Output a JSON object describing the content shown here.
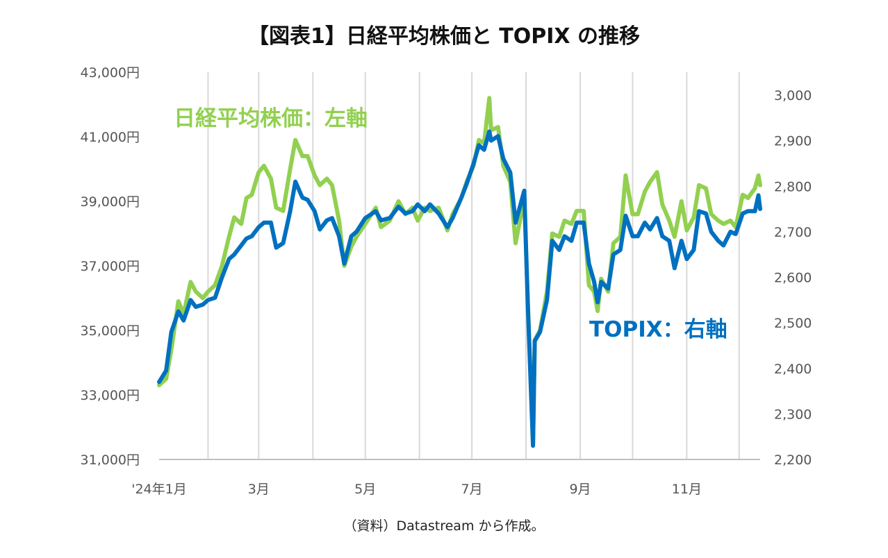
{
  "chart_data": {
    "type": "line",
    "title": "【図表1】日経平均株価と TOPIX の推移",
    "source_note": "（資料）Datastream から作成。",
    "x_tick_labels": [
      "'24年1月",
      "3月",
      "5月",
      "7月",
      "9月",
      "11月"
    ],
    "y_left": {
      "min": 31000,
      "max": 43000,
      "ticks": [
        31000,
        33000,
        35000,
        37000,
        39000,
        41000,
        43000
      ],
      "tick_labels": [
        "31,000円",
        "33,000円",
        "35,000円",
        "37,000円",
        "39,000円",
        "41,000円",
        "43,000円"
      ]
    },
    "y_right": {
      "min": 2200,
      "max": 3000,
      "ticks": [
        2200,
        2300,
        2400,
        2500,
        2600,
        2700,
        2800,
        2900,
        3000
      ],
      "tick_labels": [
        "2,200",
        "2,300",
        "2,400",
        "2,500",
        "2,600",
        "2,700",
        "2,800",
        "2,900",
        "3,000"
      ]
    },
    "grid": "vertical",
    "series": [
      {
        "name": "日経平均株価：左軸",
        "axis": "left",
        "color": "#92d050",
        "points": [
          [
            "2024-01-04",
            33300
          ],
          [
            "2024-01-08",
            33500
          ],
          [
            "2024-01-11",
            34400
          ],
          [
            "2024-01-15",
            35900
          ],
          [
            "2024-01-18",
            35500
          ],
          [
            "2024-01-22",
            36500
          ],
          [
            "2024-01-25",
            36200
          ],
          [
            "2024-01-29",
            36000
          ],
          [
            "2024-02-01",
            36200
          ],
          [
            "2024-02-05",
            36400
          ],
          [
            "2024-02-09",
            37000
          ],
          [
            "2024-02-13",
            37900
          ],
          [
            "2024-02-16",
            38500
          ],
          [
            "2024-02-20",
            38300
          ],
          [
            "2024-02-23",
            39100
          ],
          [
            "2024-02-26",
            39200
          ],
          [
            "2024-03-01",
            39900
          ],
          [
            "2024-03-04",
            40100
          ],
          [
            "2024-03-08",
            39700
          ],
          [
            "2024-03-11",
            38800
          ],
          [
            "2024-03-15",
            38700
          ],
          [
            "2024-03-19",
            40000
          ],
          [
            "2024-03-22",
            40900
          ],
          [
            "2024-03-26",
            40400
          ],
          [
            "2024-03-29",
            40400
          ],
          [
            "2024-04-02",
            39800
          ],
          [
            "2024-04-05",
            39500
          ],
          [
            "2024-04-09",
            39700
          ],
          [
            "2024-04-12",
            39500
          ],
          [
            "2024-04-16",
            38400
          ],
          [
            "2024-04-19",
            37000
          ],
          [
            "2024-04-23",
            37600
          ],
          [
            "2024-04-26",
            37900
          ],
          [
            "2024-05-01",
            38300
          ],
          [
            "2024-05-07",
            38800
          ],
          [
            "2024-05-10",
            38200
          ],
          [
            "2024-05-15",
            38400
          ],
          [
            "2024-05-20",
            39000
          ],
          [
            "2024-05-24",
            38600
          ],
          [
            "2024-05-28",
            38800
          ],
          [
            "2024-05-31",
            38400
          ],
          [
            "2024-06-04",
            38800
          ],
          [
            "2024-06-07",
            38700
          ],
          [
            "2024-06-12",
            38800
          ],
          [
            "2024-06-17",
            38100
          ],
          [
            "2024-06-20",
            38600
          ],
          [
            "2024-06-25",
            39100
          ],
          [
            "2024-06-28",
            39600
          ],
          [
            "2024-07-02",
            40100
          ],
          [
            "2024-07-05",
            40900
          ],
          [
            "2024-07-08",
            40800
          ],
          [
            "2024-07-11",
            42200
          ],
          [
            "2024-07-12",
            41200
          ],
          [
            "2024-07-16",
            41300
          ],
          [
            "2024-07-19",
            40100
          ],
          [
            "2024-07-23",
            39600
          ],
          [
            "2024-07-26",
            37700
          ],
          [
            "2024-07-31",
            39100
          ],
          [
            "2024-08-02",
            35900
          ],
          [
            "2024-08-05",
            31500
          ],
          [
            "2024-08-06",
            34700
          ],
          [
            "2024-08-09",
            35000
          ],
          [
            "2024-08-13",
            36200
          ],
          [
            "2024-08-16",
            38000
          ],
          [
            "2024-08-20",
            37900
          ],
          [
            "2024-08-23",
            38400
          ],
          [
            "2024-08-27",
            38300
          ],
          [
            "2024-08-30",
            38700
          ],
          [
            "2024-09-03",
            38700
          ],
          [
            "2024-09-06",
            36400
          ],
          [
            "2024-09-09",
            36200
          ],
          [
            "2024-09-11",
            35600
          ],
          [
            "2024-09-13",
            36600
          ],
          [
            "2024-09-17",
            36200
          ],
          [
            "2024-09-20",
            37700
          ],
          [
            "2024-09-24",
            37900
          ],
          [
            "2024-09-27",
            39800
          ],
          [
            "2024-10-01",
            38600
          ],
          [
            "2024-10-04",
            38600
          ],
          [
            "2024-10-08",
            39300
          ],
          [
            "2024-10-11",
            39600
          ],
          [
            "2024-10-15",
            39900
          ],
          [
            "2024-10-18",
            38900
          ],
          [
            "2024-10-22",
            38400
          ],
          [
            "2024-10-25",
            37900
          ],
          [
            "2024-10-29",
            39000
          ],
          [
            "2024-11-01",
            38100
          ],
          [
            "2024-11-05",
            38500
          ],
          [
            "2024-11-08",
            39500
          ],
          [
            "2024-11-12",
            39400
          ],
          [
            "2024-11-15",
            38600
          ],
          [
            "2024-11-19",
            38400
          ],
          [
            "2024-11-22",
            38300
          ],
          [
            "2024-11-26",
            38400
          ],
          [
            "2024-11-29",
            38200
          ],
          [
            "2024-12-03",
            39200
          ],
          [
            "2024-12-06",
            39100
          ],
          [
            "2024-12-10",
            39400
          ],
          [
            "2024-12-12",
            39800
          ],
          [
            "2024-12-13",
            39500
          ]
        ]
      },
      {
        "name": "TOPIX：右軸",
        "axis": "right",
        "color": "#0070c0",
        "points": [
          [
            "2024-01-04",
            2370
          ],
          [
            "2024-01-08",
            2395
          ],
          [
            "2024-01-11",
            2480
          ],
          [
            "2024-01-15",
            2525
          ],
          [
            "2024-01-18",
            2505
          ],
          [
            "2024-01-22",
            2550
          ],
          [
            "2024-01-25",
            2535
          ],
          [
            "2024-01-29",
            2540
          ],
          [
            "2024-02-01",
            2550
          ],
          [
            "2024-02-05",
            2555
          ],
          [
            "2024-02-09",
            2600
          ],
          [
            "2024-02-13",
            2640
          ],
          [
            "2024-02-16",
            2650
          ],
          [
            "2024-02-20",
            2670
          ],
          [
            "2024-02-23",
            2685
          ],
          [
            "2024-02-26",
            2690
          ],
          [
            "2024-03-01",
            2710
          ],
          [
            "2024-03-04",
            2720
          ],
          [
            "2024-03-08",
            2720
          ],
          [
            "2024-03-11",
            2665
          ],
          [
            "2024-03-15",
            2675
          ],
          [
            "2024-03-19",
            2745
          ],
          [
            "2024-03-22",
            2810
          ],
          [
            "2024-03-26",
            2775
          ],
          [
            "2024-03-29",
            2770
          ],
          [
            "2024-04-02",
            2745
          ],
          [
            "2024-04-05",
            2705
          ],
          [
            "2024-04-09",
            2725
          ],
          [
            "2024-04-12",
            2730
          ],
          [
            "2024-04-16",
            2690
          ],
          [
            "2024-04-19",
            2630
          ],
          [
            "2024-04-23",
            2690
          ],
          [
            "2024-04-26",
            2700
          ],
          [
            "2024-05-01",
            2730
          ],
          [
            "2024-05-07",
            2745
          ],
          [
            "2024-05-10",
            2725
          ],
          [
            "2024-05-15",
            2730
          ],
          [
            "2024-05-20",
            2755
          ],
          [
            "2024-05-24",
            2740
          ],
          [
            "2024-05-28",
            2745
          ],
          [
            "2024-05-31",
            2760
          ],
          [
            "2024-06-04",
            2745
          ],
          [
            "2024-06-07",
            2760
          ],
          [
            "2024-06-12",
            2740
          ],
          [
            "2024-06-17",
            2710
          ],
          [
            "2024-06-20",
            2730
          ],
          [
            "2024-06-25",
            2775
          ],
          [
            "2024-06-28",
            2805
          ],
          [
            "2024-07-02",
            2850
          ],
          [
            "2024-07-05",
            2890
          ],
          [
            "2024-07-08",
            2880
          ],
          [
            "2024-07-11",
            2920
          ],
          [
            "2024-07-12",
            2900
          ],
          [
            "2024-07-16",
            2910
          ],
          [
            "2024-07-19",
            2860
          ],
          [
            "2024-07-23",
            2830
          ],
          [
            "2024-07-26",
            2720
          ],
          [
            "2024-07-31",
            2790
          ],
          [
            "2024-08-02",
            2540
          ],
          [
            "2024-08-05",
            2230
          ],
          [
            "2024-08-06",
            2460
          ],
          [
            "2024-08-09",
            2480
          ],
          [
            "2024-08-13",
            2550
          ],
          [
            "2024-08-16",
            2680
          ],
          [
            "2024-08-20",
            2660
          ],
          [
            "2024-08-23",
            2690
          ],
          [
            "2024-08-27",
            2680
          ],
          [
            "2024-08-30",
            2720
          ],
          [
            "2024-09-03",
            2720
          ],
          [
            "2024-09-06",
            2630
          ],
          [
            "2024-09-09",
            2590
          ],
          [
            "2024-09-11",
            2545
          ],
          [
            "2024-09-13",
            2590
          ],
          [
            "2024-09-17",
            2575
          ],
          [
            "2024-09-20",
            2650
          ],
          [
            "2024-09-24",
            2660
          ],
          [
            "2024-09-27",
            2735
          ],
          [
            "2024-10-01",
            2690
          ],
          [
            "2024-10-04",
            2690
          ],
          [
            "2024-10-08",
            2720
          ],
          [
            "2024-10-11",
            2705
          ],
          [
            "2024-10-15",
            2730
          ],
          [
            "2024-10-18",
            2690
          ],
          [
            "2024-10-22",
            2680
          ],
          [
            "2024-10-25",
            2620
          ],
          [
            "2024-10-29",
            2680
          ],
          [
            "2024-11-01",
            2640
          ],
          [
            "2024-11-05",
            2660
          ],
          [
            "2024-11-08",
            2745
          ],
          [
            "2024-11-12",
            2740
          ],
          [
            "2024-11-15",
            2700
          ],
          [
            "2024-11-19",
            2680
          ],
          [
            "2024-11-22",
            2670
          ],
          [
            "2024-11-26",
            2700
          ],
          [
            "2024-11-29",
            2695
          ],
          [
            "2024-12-03",
            2740
          ],
          [
            "2024-12-06",
            2745
          ],
          [
            "2024-12-10",
            2745
          ],
          [
            "2024-12-12",
            2780
          ],
          [
            "2024-12-13",
            2750
          ]
        ]
      }
    ]
  }
}
